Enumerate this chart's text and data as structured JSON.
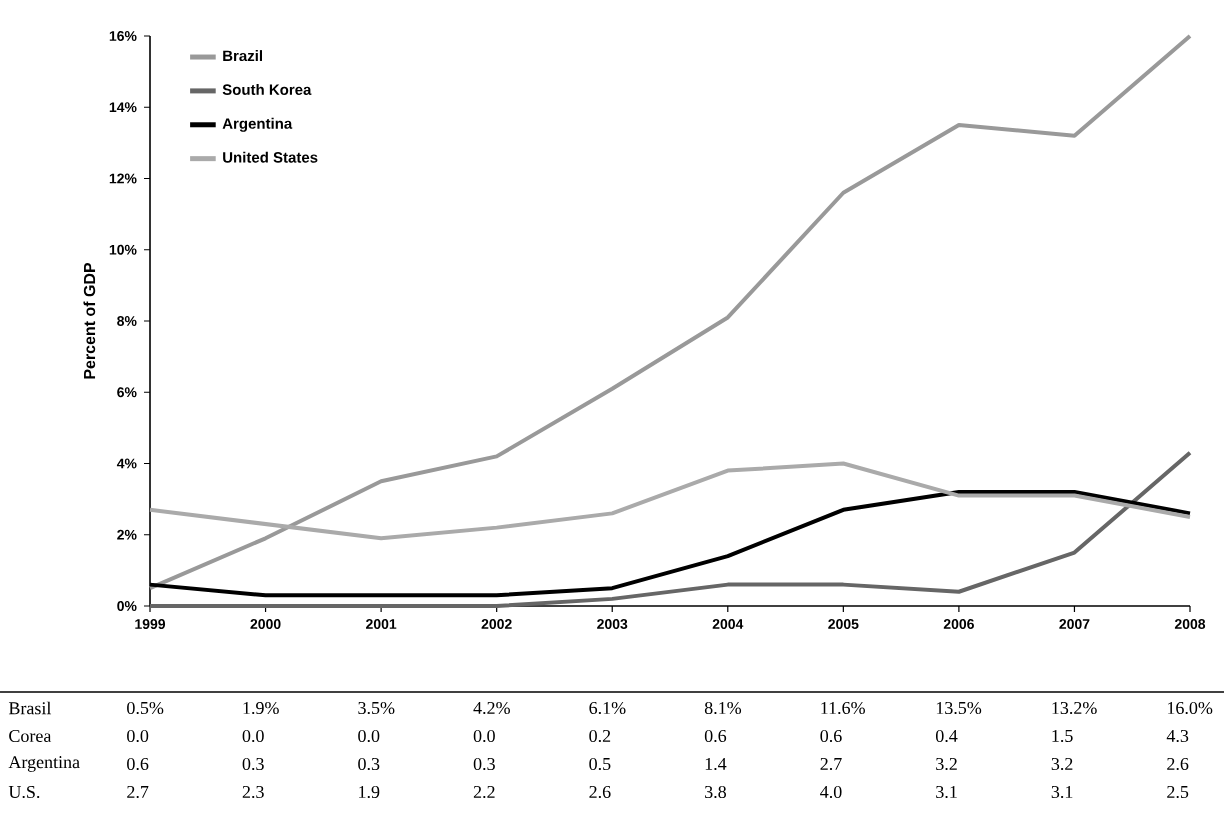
{
  "chart_data": {
    "type": "line",
    "ylabel": "Percent of GDP",
    "categories": [
      "1999",
      "2000",
      "2001",
      "2002",
      "2003",
      "2004",
      "2005",
      "2006",
      "2007",
      "2008"
    ],
    "series": [
      {
        "name": "Brazil",
        "color": "#999999",
        "values": [
          0.5,
          1.9,
          3.5,
          4.2,
          6.1,
          8.1,
          11.6,
          13.5,
          13.2,
          16.0
        ],
        "value_labels": [
          "0.5%",
          "1.9%",
          "3.5%",
          "4.2%",
          "6.1%",
          "8.1%",
          "11.6%",
          "13.5%",
          "13.2%",
          "16.0%"
        ]
      },
      {
        "name": "South Korea",
        "color": "#666666",
        "values": [
          0.0,
          0.0,
          0.0,
          0.0,
          0.2,
          0.6,
          0.6,
          0.4,
          1.5,
          4.3
        ],
        "value_labels": [
          "0.0",
          "0.0",
          "0.0",
          "0.0",
          "0.2",
          "0.6",
          "0.6",
          "0.4",
          "1.5",
          "4.3"
        ]
      },
      {
        "name": "Argentina",
        "color": "#000000",
        "values": [
          0.6,
          0.3,
          0.3,
          0.3,
          0.5,
          1.4,
          2.7,
          3.2,
          3.2,
          2.6
        ],
        "value_labels": [
          "0.6",
          "0.3",
          "0.3",
          "0.3",
          "0.5",
          "1.4",
          "2.7",
          "3.2",
          "3.2",
          "2.6"
        ]
      },
      {
        "name": "United States",
        "color": "#aaaaaa",
        "values": [
          2.7,
          2.3,
          1.9,
          2.2,
          2.6,
          3.8,
          4.0,
          3.1,
          3.1,
          2.5
        ],
        "value_labels": [
          "2.7",
          "2.3",
          "1.9",
          "2.2",
          "2.6",
          "3.8",
          "4.0",
          "3.1",
          "3.1",
          "2.5"
        ]
      }
    ],
    "annotations": [
      "Brasil",
      "Corea",
      "Argentina",
      "U.S."
    ],
    "ylim": [
      0,
      16
    ],
    "yticks": [
      {
        "value": 0,
        "label": "0%"
      },
      {
        "value": 2,
        "label": "2%"
      },
      {
        "value": 4,
        "label": "4%"
      },
      {
        "value": 6,
        "label": "6%"
      },
      {
        "value": 8,
        "label": "8%"
      },
      {
        "value": 10,
        "label": "10%"
      },
      {
        "value": 12,
        "label": "12%"
      },
      {
        "value": 14,
        "label": "14%"
      },
      {
        "value": 16,
        "label": "16%"
      }
    ],
    "legend": "top left",
    "grid": false,
    "marker": "none",
    "line_style": "solid"
  }
}
